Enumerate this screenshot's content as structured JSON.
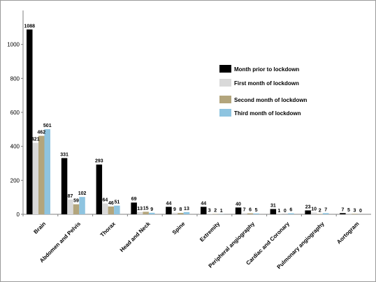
{
  "chart_data": {
    "type": "bar",
    "title": "",
    "xlabel": "",
    "ylabel": "",
    "ylim": [
      0,
      1200
    ],
    "yticks": [
      0,
      200,
      400,
      600,
      800,
      1000
    ],
    "grid": false,
    "legend_position": "right",
    "categories": [
      "Brain",
      "Abdomen and Pelvis",
      "Thorax",
      "Head and Neck",
      "Spine",
      "Extremity",
      "Peripheral angiography",
      "Cardiac and Coronary",
      "Pulmonary angiography",
      "Aortogram"
    ],
    "series": [
      {
        "name": "Month prior to lockdown",
        "color": "#000000",
        "values": [
          1088,
          331,
          293,
          69,
          44,
          44,
          40,
          31,
          23,
          7
        ]
      },
      {
        "name": "First month of lockdown",
        "color": "#d9d9d9",
        "values": [
          421,
          87,
          64,
          13,
          9,
          3,
          7,
          1,
          10,
          5
        ]
      },
      {
        "name": "Second month of lockdown",
        "color": "#b3a57c",
        "values": [
          462,
          59,
          46,
          15,
          8,
          2,
          6,
          0,
          2,
          3
        ]
      },
      {
        "name": "Third month of lockdown",
        "color": "#8ec4e0",
        "values": [
          501,
          102,
          51,
          9,
          13,
          1,
          5,
          6,
          7,
          0
        ]
      }
    ]
  }
}
